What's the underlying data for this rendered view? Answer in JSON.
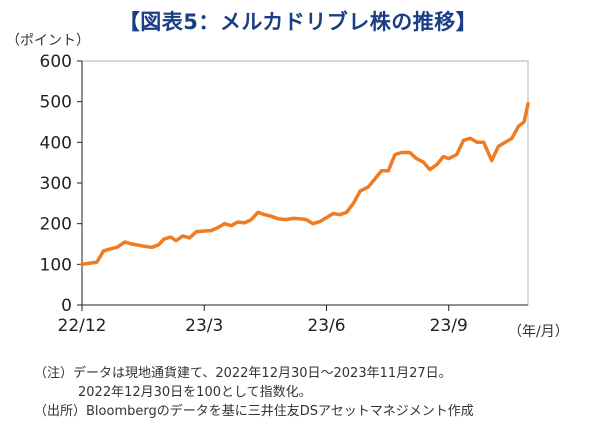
{
  "title": "【図表5：メルカドリブレ株の推移】",
  "y_unit": "（ポイント）",
  "x_unit": "（年/月）",
  "notes": [
    "（注）データは現地通貨建て、2022年12月30日～2023年11月27日。",
    "2022年12月30日を100として指数化。",
    "（出所）Bloombergのデータを基に三井住友DSアセットマネジメント作成"
  ],
  "colors": {
    "line": "#ef7b22",
    "title": "#1a3e86",
    "axis": "#222222"
  },
  "chart_data": {
    "type": "line",
    "title": "【図表5：メルカドリブレ株の推移】",
    "xlabel": "（年/月）",
    "ylabel": "（ポイント）",
    "ylim": [
      0,
      600
    ],
    "yticks": [
      0,
      100,
      200,
      300,
      400,
      500,
      600
    ],
    "xlim": [
      "2022-12-30",
      "2023-11-27"
    ],
    "xticks": [
      {
        "date": "2022-12-30",
        "label": "22/12"
      },
      {
        "date": "2023-03-31",
        "label": "23/3"
      },
      {
        "date": "2023-06-30",
        "label": "23/6"
      },
      {
        "date": "2023-09-29",
        "label": "23/9"
      }
    ],
    "grid": false,
    "series": [
      {
        "x": [
          "2022-12-30",
          "2023-01-05",
          "2023-01-10",
          "2023-01-15",
          "2023-01-20",
          "2023-01-25",
          "2023-01-31",
          "2023-02-05",
          "2023-02-10",
          "2023-02-15",
          "2023-02-20",
          "2023-02-25",
          "2023-03-01",
          "2023-03-06",
          "2023-03-10",
          "2023-03-15",
          "2023-03-20",
          "2023-03-25",
          "2023-03-31",
          "2023-04-05",
          "2023-04-10",
          "2023-04-15",
          "2023-04-20",
          "2023-04-25",
          "2023-04-30",
          "2023-05-05",
          "2023-05-10",
          "2023-05-15",
          "2023-05-20",
          "2023-05-25",
          "2023-05-31",
          "2023-06-05",
          "2023-06-10",
          "2023-06-15",
          "2023-06-20",
          "2023-06-25",
          "2023-06-30",
          "2023-07-05",
          "2023-07-10",
          "2023-07-15",
          "2023-07-20",
          "2023-07-25",
          "2023-07-31",
          "2023-08-05",
          "2023-08-10",
          "2023-08-15",
          "2023-08-20",
          "2023-08-25",
          "2023-08-31",
          "2023-09-05",
          "2023-09-10",
          "2023-09-15",
          "2023-09-20",
          "2023-09-25",
          "2023-09-29",
          "2023-10-05",
          "2023-10-10",
          "2023-10-15",
          "2023-10-20",
          "2023-10-25",
          "2023-10-31",
          "2023-11-05",
          "2023-11-10",
          "2023-11-15",
          "2023-11-20",
          "2023-11-24",
          "2023-11-27"
        ],
        "y": [
          100,
          103,
          105,
          133,
          138,
          142,
          155,
          150,
          147,
          144,
          142,
          148,
          162,
          167,
          158,
          170,
          165,
          180,
          182,
          183,
          190,
          200,
          195,
          204,
          202,
          210,
          228,
          222,
          218,
          212,
          210,
          213,
          212,
          210,
          200,
          205,
          215,
          225,
          222,
          228,
          250,
          280,
          290,
          310,
          330,
          330,
          370,
          375,
          375,
          360,
          352,
          333,
          345,
          365,
          360,
          370,
          405,
          410,
          400,
          400,
          355,
          390,
          400,
          410,
          440,
          450,
          495
        ]
      }
    ]
  }
}
